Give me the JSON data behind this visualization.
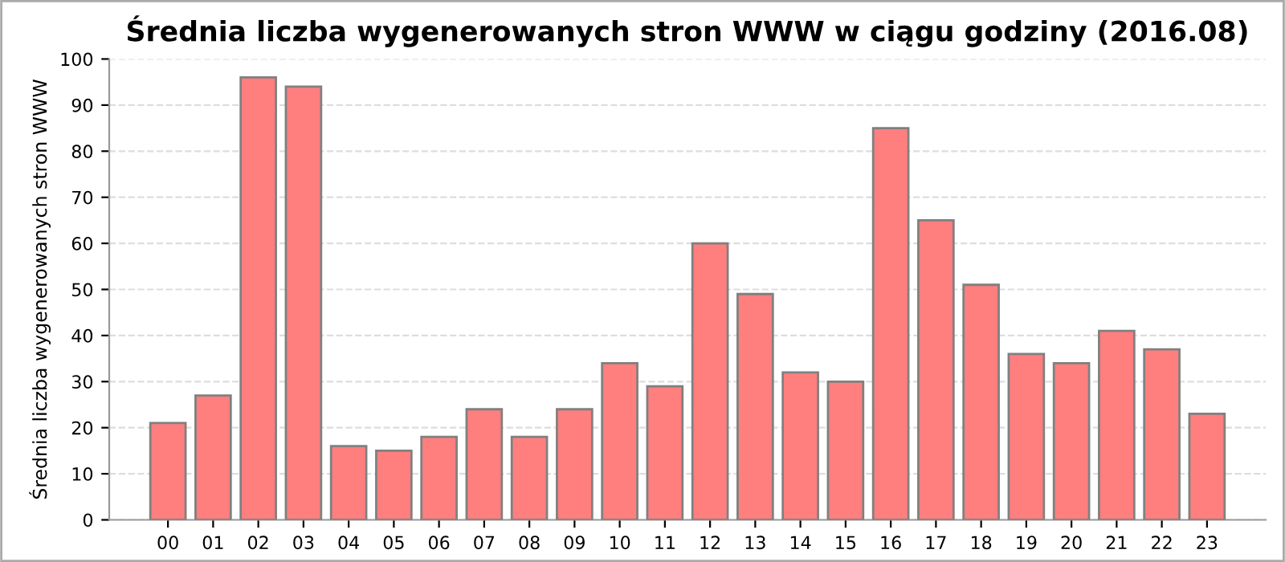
{
  "chart_data": {
    "type": "bar",
    "title": "Średnia liczba wygenerowanych stron WWW w ciągu godziny (2016.08)",
    "ylabel": "Średnia liczba wygenerowanych stron WWW",
    "categories": [
      "00",
      "01",
      "02",
      "03",
      "04",
      "05",
      "06",
      "07",
      "08",
      "09",
      "10",
      "11",
      "12",
      "13",
      "14",
      "15",
      "16",
      "17",
      "18",
      "19",
      "20",
      "21",
      "22",
      "23"
    ],
    "values": [
      21,
      27,
      96,
      94,
      16,
      15,
      18,
      24,
      18,
      24,
      34,
      29,
      60,
      49,
      32,
      30,
      85,
      65,
      51,
      36,
      34,
      41,
      37,
      23
    ],
    "color": "#ff7f7f",
    "ylim": [
      0,
      100
    ],
    "yticks": [
      0,
      10,
      20,
      30,
      40,
      50,
      60,
      70,
      80,
      90,
      100
    ],
    "grid": "y"
  }
}
